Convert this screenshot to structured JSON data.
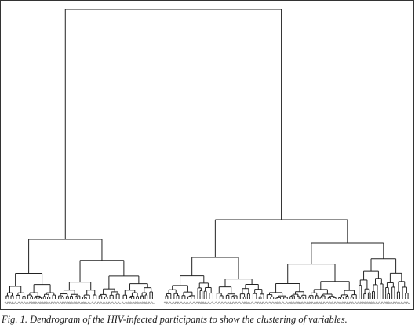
{
  "figure": {
    "caption": "Fig. 1. Dendrogram of the HIV-infected participants to show the clustering of variables."
  }
}
